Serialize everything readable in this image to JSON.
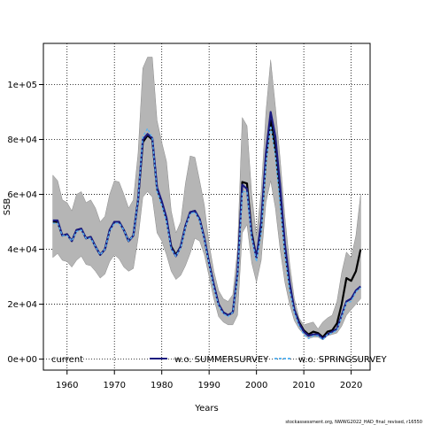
{
  "chart_data": {
    "type": "line",
    "xlabel": "Years",
    "ylabel": "SSB",
    "xlim": [
      1955,
      2024
    ],
    "ylim": [
      -4000,
      115000
    ],
    "xticks": [
      1960,
      1970,
      1980,
      1990,
      2000,
      2010,
      2020
    ],
    "xtick_labels": [
      "1960",
      "1970",
      "1980",
      "1990",
      "2000",
      "2010",
      "2020"
    ],
    "yticks": [
      0,
      20000,
      40000,
      60000,
      80000,
      100000
    ],
    "ytick_labels": [
      "0e+00",
      "2e+04",
      "4e+04",
      "6e+04",
      "8e+04",
      "1e+05"
    ],
    "grid": true,
    "legend_position": "bottom",
    "x": [
      1957,
      1958,
      1959,
      1960,
      1961,
      1962,
      1963,
      1964,
      1965,
      1966,
      1967,
      1968,
      1969,
      1970,
      1971,
      1972,
      1973,
      1974,
      1975,
      1976,
      1977,
      1978,
      1979,
      1980,
      1981,
      1982,
      1983,
      1984,
      1985,
      1986,
      1987,
      1988,
      1989,
      1990,
      1991,
      1992,
      1993,
      1994,
      1995,
      1996,
      1997,
      1998,
      1999,
      2000,
      2001,
      2002,
      2003,
      2004,
      2005,
      2006,
      2007,
      2008,
      2009,
      2010,
      2011,
      2012,
      2013,
      2014,
      2015,
      2016,
      2017,
      2018,
      2019,
      2020,
      2021,
      2022
    ],
    "band": {
      "lower": [
        37000,
        38500,
        36000,
        35500,
        33500,
        36000,
        37500,
        34500,
        34000,
        32000,
        29500,
        31000,
        35500,
        38000,
        36500,
        33500,
        32000,
        33000,
        44000,
        59000,
        61000,
        59000,
        46000,
        43000,
        38000,
        32000,
        29000,
        30500,
        34000,
        38500,
        44000,
        43000,
        38000,
        30000,
        22000,
        15500,
        13500,
        12500,
        12500,
        16000,
        46000,
        49000,
        35000,
        28000,
        36000,
        57000,
        65000,
        55000,
        40000,
        28000,
        20000,
        14000,
        11000,
        9000,
        7500,
        8000,
        8000,
        7000,
        8500,
        9000,
        9500,
        12000,
        16000,
        18000,
        20000,
        22000
      ],
      "upper": [
        67000,
        65000,
        58000,
        57000,
        54000,
        60000,
        61000,
        57000,
        58000,
        55000,
        50000,
        52000,
        60000,
        65000,
        64500,
        60000,
        55000,
        58000,
        75000,
        106000,
        110000,
        110000,
        87000,
        79000,
        72000,
        54000,
        46000,
        50000,
        64000,
        74000,
        73500,
        65000,
        56000,
        42000,
        32000,
        25000,
        22000,
        21000,
        23500,
        40000,
        88000,
        85000,
        60000,
        45000,
        61000,
        90000,
        109000,
        92000,
        73000,
        52000,
        35000,
        22000,
        15000,
        12500,
        13000,
        13500,
        11000,
        13500,
        15000,
        16000,
        21000,
        31500,
        39000,
        37000,
        45000,
        60000
      ]
    },
    "series": [
      {
        "name": "current",
        "values": [
          50000,
          50000,
          45000,
          45500,
          43000,
          47000,
          47500,
          44000,
          44500,
          41000,
          38000,
          40000,
          47000,
          50000,
          50000,
          47000,
          43000,
          45000,
          58000,
          79000,
          81500,
          80000,
          62000,
          57000,
          51000,
          41000,
          38000,
          41000,
          48500,
          53500,
          54000,
          51000,
          44000,
          35000,
          27000,
          20000,
          17000,
          16000,
          17000,
          31000,
          64500,
          64000,
          46000,
          37000,
          48000,
          73000,
          87000,
          76000,
          60000,
          40000,
          27000,
          18000,
          13500,
          10500,
          9000,
          10000,
          9500,
          8000,
          10000,
          10500,
          13000,
          20000,
          29500,
          28500,
          32000,
          40000
        ]
      },
      {
        "name": "w.o. SUMMERSURVEY",
        "values": [
          50500,
          50500,
          45000,
          45500,
          43000,
          47000,
          47500,
          44000,
          44500,
          41000,
          38000,
          40000,
          47000,
          50000,
          50000,
          47000,
          43000,
          45000,
          58000,
          80000,
          82000,
          80500,
          62500,
          57500,
          51500,
          40500,
          37500,
          41000,
          48500,
          53500,
          54000,
          51000,
          44000,
          35000,
          27000,
          20000,
          17000,
          16000,
          17000,
          31500,
          63500,
          62000,
          45000,
          37000,
          50000,
          75000,
          90000,
          81000,
          63000,
          42000,
          28000,
          18000,
          13000,
          10000,
          8500,
          9000,
          9000,
          7500,
          9000,
          10000,
          11000,
          16000,
          21000,
          22000,
          25000,
          26500
        ]
      },
      {
        "name": "w.o. SPRINGSURVEY",
        "values": [
          49500,
          49500,
          45000,
          45000,
          43000,
          46500,
          47000,
          44000,
          44000,
          41000,
          38000,
          40000,
          46500,
          49500,
          49500,
          47000,
          43000,
          45000,
          58000,
          81000,
          84000,
          80500,
          61000,
          56000,
          50000,
          40000,
          37500,
          40500,
          48000,
          53000,
          53500,
          50500,
          43500,
          34500,
          26000,
          19500,
          16500,
          15500,
          17000,
          30000,
          61000,
          61000,
          44000,
          35500,
          46000,
          71000,
          85000,
          74000,
          56000,
          38000,
          25000,
          17000,
          12000,
          9000,
          7500,
          8500,
          8500,
          7000,
          9000,
          9500,
          10500,
          15500,
          20500,
          21000,
          24500,
          26000
        ]
      }
    ],
    "series_styles": [
      {
        "color": "#000000",
        "dash": "none"
      },
      {
        "color": "#1a1a80",
        "dash": "none"
      },
      {
        "color": "#5bb3f0",
        "dash": "3,2"
      }
    ],
    "band_color": "#b5b5b5",
    "footnote": "stockassessment.org, NWWG2022_HAD_final_revised, r16550"
  }
}
